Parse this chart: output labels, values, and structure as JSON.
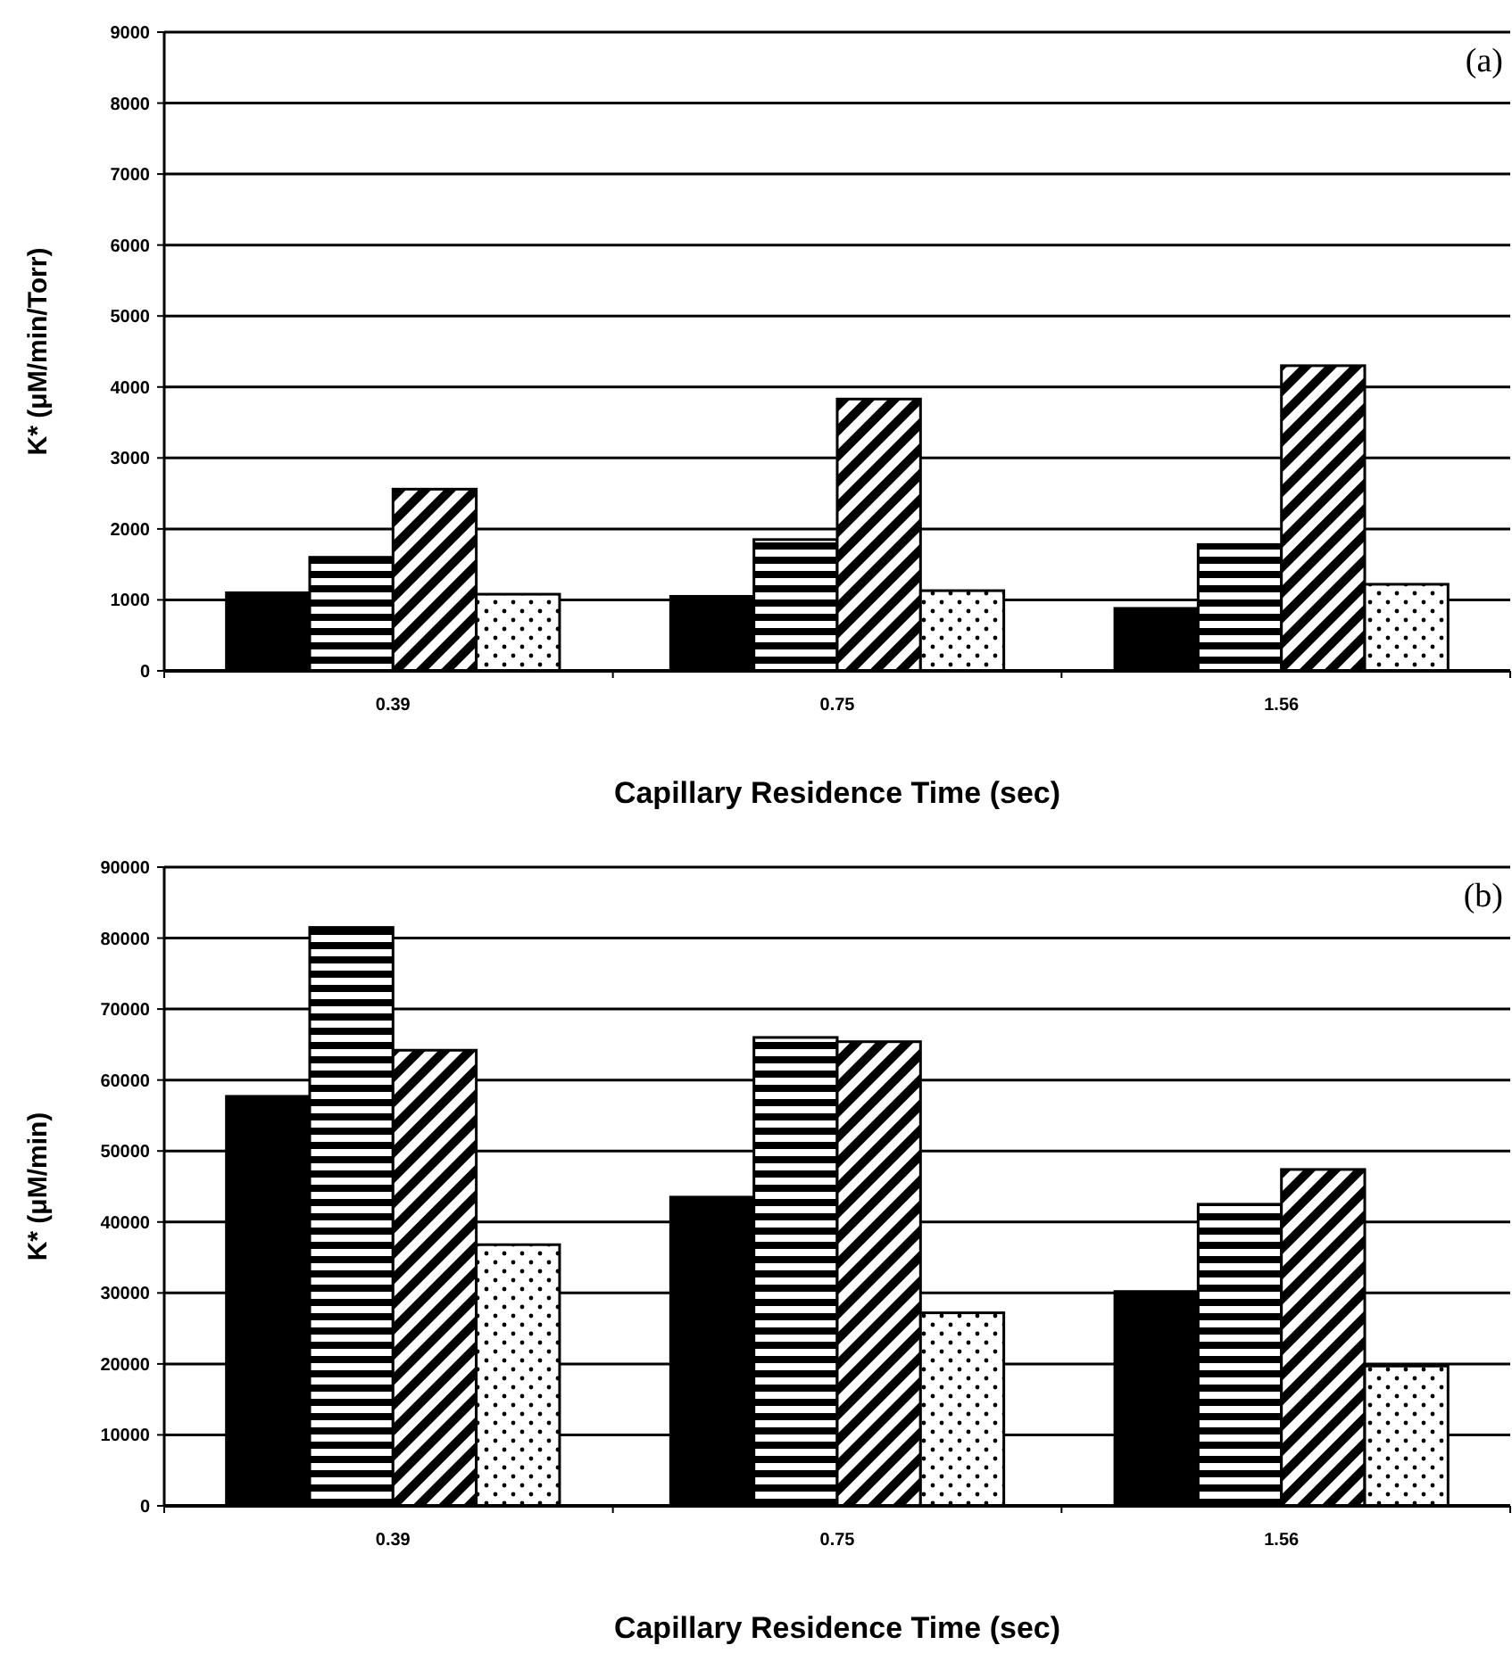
{
  "chart_data": [
    {
      "type": "bar",
      "xlabel": "Capillary Residence Time (sec)",
      "ylabel": "K* (μM/min/Torr)",
      "categories": [
        "0.39",
        "0.75",
        "1.56"
      ],
      "series": [
        {
          "color": "#000000",
          "values": [
            1100,
            1050,
            880
          ]
        },
        {
          "color": "#000000",
          "values": [
            1600,
            1850,
            1780
          ]
        },
        {
          "color": "#000000",
          "values": [
            2560,
            3830,
            4300
          ]
        },
        {
          "color": "#000000",
          "values": [
            1080,
            1130,
            1220
          ]
        }
      ],
      "ylim": [
        0,
        9000
      ],
      "yticks": [
        0,
        1000,
        2000,
        3000,
        4000,
        5000,
        6000,
        7000,
        8000,
        9000
      ],
      "grid": "y",
      "annotations": [
        "(a)"
      ]
    },
    {
      "type": "bar",
      "xlabel": "Capillary Residence Time (sec)",
      "ylabel": "K* (μM/min)",
      "categories": [
        "0.39",
        "0.75",
        "1.56"
      ],
      "series": [
        {
          "color": "#000000",
          "values": [
            57700,
            43500,
            30200
          ]
        },
        {
          "color": "#000000",
          "values": [
            81500,
            66000,
            42500
          ]
        },
        {
          "color": "#000000",
          "values": [
            64200,
            65400,
            47400
          ]
        },
        {
          "color": "#000000",
          "values": [
            36800,
            27200,
            19700
          ]
        }
      ],
      "ylim": [
        0,
        90000
      ],
      "yticks": [
        0,
        10000,
        20000,
        30000,
        40000,
        50000,
        60000,
        70000,
        80000,
        90000
      ],
      "grid": "y",
      "annotations": [
        "(b)"
      ]
    }
  ]
}
